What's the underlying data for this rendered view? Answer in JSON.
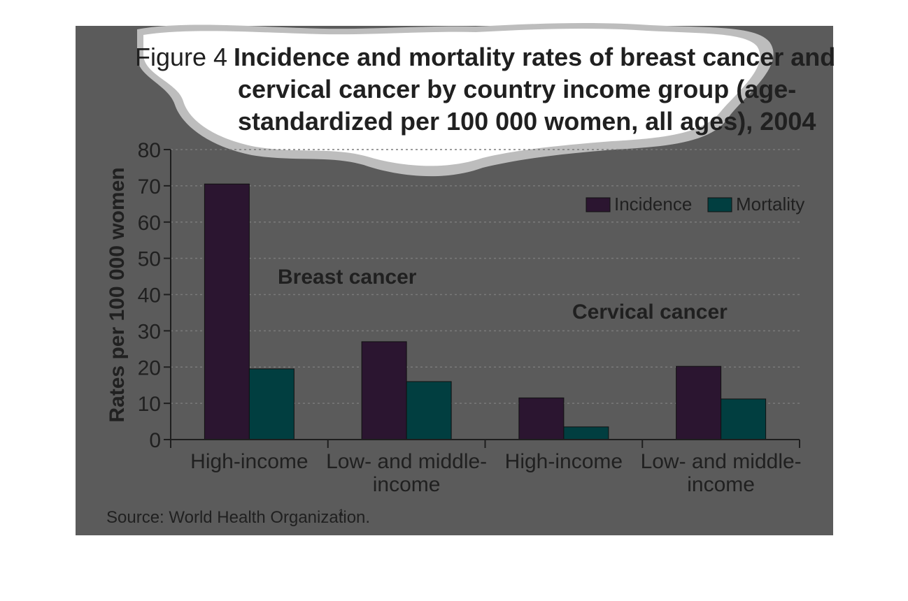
{
  "colors": {
    "panel": "#5b5b5b",
    "incidence": "#2b1530",
    "mortality": "#013e40",
    "text": "#202020",
    "axis": "#1e1e1e",
    "grid": "#7b7b7b",
    "title_blob": "#ffffff",
    "title_blob_shadow": "#bdbdbd"
  },
  "figure": {
    "label": "Figure 4",
    "title_lines": [
      "Incidence and mortality rates of breast cancer and",
      "cervical cancer by country income group (age-",
      "standardized per 100 000 women, all ages), 2004"
    ],
    "source": "Source: World Health Organization.",
    "source_sup": "1"
  },
  "chart_data": {
    "type": "bar",
    "title": "Incidence and mortality rates of breast cancer and cervical cancer by country income group (age-standardized per 100 000 women, all ages), 2004",
    "ylabel": "Rates per 100 000 women",
    "xlabel": "",
    "ylim": [
      0,
      80
    ],
    "yticks": [
      0,
      10,
      20,
      30,
      40,
      50,
      60,
      70,
      80
    ],
    "grid": true,
    "legend_position": "top-right",
    "categories": [
      [
        "High-income"
      ],
      [
        "Low- and middle-",
        "income"
      ],
      [
        "High-income"
      ],
      [
        "Low- and middle-",
        "income"
      ]
    ],
    "groups": [
      {
        "label": "Breast cancer",
        "categories": [
          0,
          1
        ]
      },
      {
        "label": "Cervical cancer",
        "categories": [
          2,
          3
        ]
      }
    ],
    "series": [
      {
        "name": "Incidence",
        "values": [
          70.5,
          27,
          11.5,
          20.2
        ]
      },
      {
        "name": "Mortality",
        "values": [
          19.5,
          16,
          3.5,
          11.2
        ]
      }
    ]
  }
}
